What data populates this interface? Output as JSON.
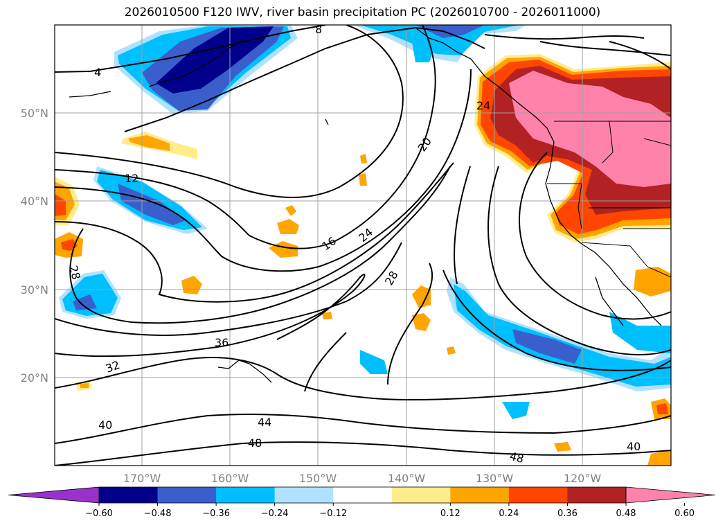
{
  "title": "2026010500 F120 IWV, river basin precipitation PC (2026010700 - 2026011000)",
  "map": {
    "lon_range": [
      -180,
      -110
    ],
    "lat_range": [
      10,
      60
    ],
    "lat_ticks": [
      "50°N",
      "40°N",
      "30°N",
      "20°N"
    ],
    "lon_ticks": [
      "170°W",
      "160°W",
      "150°W",
      "140°W",
      "130°W",
      "120°W"
    ],
    "contour_labels": [
      "4",
      "8",
      "12",
      "16",
      "20",
      "24",
      "28",
      "32",
      "36",
      "40",
      "44",
      "48",
      "24",
      "28",
      "48",
      "40"
    ],
    "shading_var": "river basin precipitation PC",
    "contour_var": "IWV"
  },
  "colorbar": {
    "tick_labels": [
      "−0.60",
      "−0.48",
      "−0.36",
      "−0.24",
      "−0.12",
      "0.12",
      "0.24",
      "0.36",
      "0.48",
      "0.60"
    ],
    "colors": [
      "#9932cc",
      "#00008b",
      "#3a5fcd",
      "#00bfff",
      "#b0e2ff",
      "#ffffff",
      "#ffec8b",
      "#ffa500",
      "#ff4500",
      "#b22222",
      "#ff82ab"
    ]
  }
}
